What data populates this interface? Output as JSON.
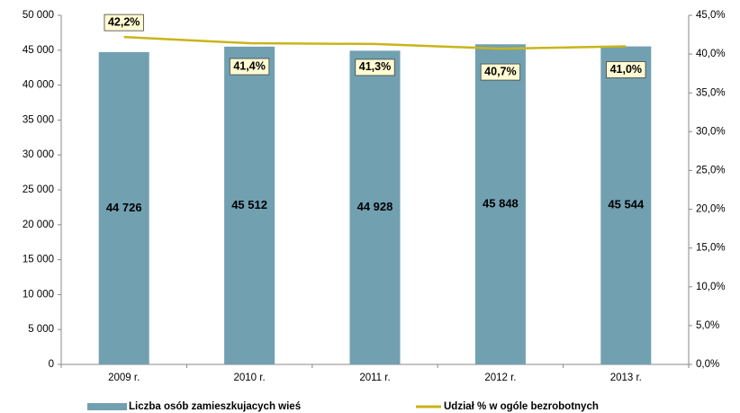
{
  "chart_data": {
    "type": "bar_line",
    "categories": [
      "2009 r.",
      "2010 r.",
      "2011 r.",
      "2012 r.",
      "2013 r."
    ],
    "series": [
      {
        "name": "Liczba osób zamieszkujacych wieś",
        "color": "#71a0b1",
        "values": [
          44726,
          45512,
          44928,
          45848,
          45544
        ],
        "value_labels": [
          "44 726",
          "45 512",
          "44 928",
          "45 848",
          "45 544"
        ]
      },
      {
        "name": "Udział % w ogóle bezrobotnych",
        "color": "#c9b41a",
        "axis": "y2",
        "values": [
          42.2,
          41.4,
          41.3,
          40.7,
          41.0
        ],
        "value_labels": [
          "42,2%",
          "41,4%",
          "41,3%",
          "40,7%",
          "41,0%"
        ]
      }
    ],
    "ylim": [
      0,
      50000
    ],
    "yticks": [
      0,
      {
        "value": 5000,
        "label": "5 000"
      },
      {
        "value": 10000,
        "label": "10 000"
      },
      {
        "value": 15000,
        "label": "15 000"
      },
      {
        "value": 20000,
        "label": "20 000"
      },
      {
        "value": 25000,
        "label": "25 000"
      },
      {
        "value": 30000,
        "label": "30 000"
      },
      {
        "value": 35000,
        "label": "35 000"
      },
      {
        "value": 40000,
        "label": "40 000"
      },
      {
        "value": 45000,
        "label": "45 000"
      },
      {
        "value": 50000,
        "label": "50 000"
      }
    ],
    "y2lim": [
      0,
      45
    ],
    "y2ticks": [
      {
        "value": 0,
        "label": "0,0%"
      },
      {
        "value": 5,
        "label": "5,0%"
      },
      {
        "value": 10,
        "label": "10,0%"
      },
      {
        "value": 15,
        "label": "15,0%"
      },
      {
        "value": 20,
        "label": "20,0%"
      },
      {
        "value": 25,
        "label": "25,0%"
      },
      {
        "value": 30,
        "label": "30,0%"
      },
      {
        "value": 35,
        "label": "35,0%"
      },
      {
        "value": 40,
        "label": "40,0%"
      },
      {
        "value": 45,
        "label": "45,0%"
      }
    ],
    "grid": false,
    "legend": "bottom"
  }
}
